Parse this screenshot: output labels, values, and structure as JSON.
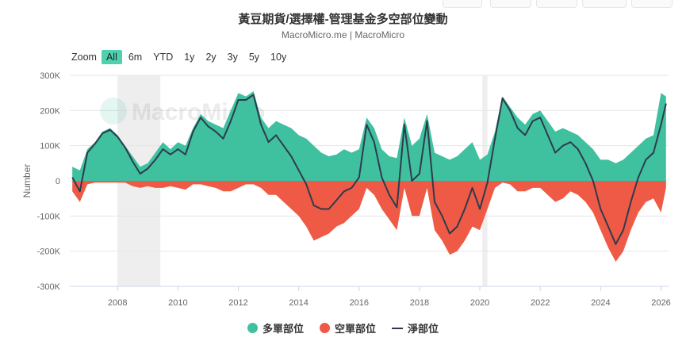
{
  "title": "黃豆期貨/選擇權-管理基金多空部位變動",
  "subtitle": "MacroMicro.me | MacroMicro",
  "watermark": "MacroMicro",
  "zoom": {
    "label": "Zoom",
    "buttons": [
      "All",
      "6m",
      "YTD",
      "1y",
      "2y",
      "3y",
      "5y",
      "10y"
    ],
    "active": "All"
  },
  "legend": [
    {
      "label": "多單部位",
      "color": "#3fc1a0"
    },
    {
      "label": "空單部位",
      "color": "#ee5a45"
    },
    {
      "label": "淨部位",
      "color": "#2f3b4c"
    }
  ],
  "chart_data": {
    "type": "area",
    "ylabel": "Number",
    "ylim": [
      -300000,
      300000
    ],
    "ytick_labels": [
      "300K",
      "200K",
      "100K",
      "0",
      "-100K",
      "-200K",
      "-300K"
    ],
    "ytick_values": [
      300000,
      200000,
      100000,
      0,
      -100000,
      -200000,
      -300000
    ],
    "xlim": [
      "2006-06",
      "2026-04"
    ],
    "xtick_labels": [
      "2008",
      "2010",
      "2012",
      "2014",
      "2016",
      "2018",
      "2020",
      "2022",
      "2024",
      "2026"
    ],
    "grid": true,
    "legend_position": "bottom",
    "shaded_periods": [
      [
        "2008-01",
        "2009-06"
      ],
      [
        "2020-02",
        "2020-04"
      ]
    ],
    "x": [
      "2006-07",
      "2006-10",
      "2007-01",
      "2007-04",
      "2007-07",
      "2007-10",
      "2008-01",
      "2008-04",
      "2008-07",
      "2008-10",
      "2009-01",
      "2009-04",
      "2009-07",
      "2009-10",
      "2010-01",
      "2010-04",
      "2010-07",
      "2010-10",
      "2011-01",
      "2011-04",
      "2011-07",
      "2011-10",
      "2012-01",
      "2012-04",
      "2012-07",
      "2012-10",
      "2013-01",
      "2013-04",
      "2013-07",
      "2013-10",
      "2014-01",
      "2014-04",
      "2014-07",
      "2014-10",
      "2015-01",
      "2015-04",
      "2015-07",
      "2015-10",
      "2016-01",
      "2016-04",
      "2016-07",
      "2016-10",
      "2017-01",
      "2017-04",
      "2017-07",
      "2017-10",
      "2018-01",
      "2018-04",
      "2018-07",
      "2018-10",
      "2019-01",
      "2019-04",
      "2019-07",
      "2019-10",
      "2020-01",
      "2020-04",
      "2020-07",
      "2020-10",
      "2021-01",
      "2021-04",
      "2021-07",
      "2021-10",
      "2022-01",
      "2022-04",
      "2022-07",
      "2022-10",
      "2023-01",
      "2023-04",
      "2023-07",
      "2023-10",
      "2024-01",
      "2024-04",
      "2024-07",
      "2024-10",
      "2025-01",
      "2025-04",
      "2025-07",
      "2025-10",
      "2026-01",
      "2026-03"
    ],
    "series": [
      {
        "name": "多單部位",
        "values": [
          40000,
          30000,
          90000,
          110000,
          140000,
          150000,
          130000,
          100000,
          70000,
          40000,
          50000,
          80000,
          110000,
          90000,
          110000,
          100000,
          150000,
          190000,
          170000,
          160000,
          150000,
          200000,
          250000,
          240000,
          255000,
          180000,
          150000,
          170000,
          160000,
          150000,
          130000,
          120000,
          100000,
          80000,
          70000,
          75000,
          90000,
          80000,
          90000,
          180000,
          150000,
          90000,
          70000,
          65000,
          180000,
          100000,
          120000,
          190000,
          80000,
          70000,
          60000,
          70000,
          90000,
          110000,
          60000,
          75000,
          140000,
          240000,
          210000,
          180000,
          160000,
          190000,
          200000,
          170000,
          140000,
          150000,
          140000,
          130000,
          110000,
          90000,
          60000,
          60000,
          50000,
          60000,
          80000,
          100000,
          120000,
          130000,
          250000,
          240000
        ]
      },
      {
        "name": "空單部位",
        "values": [
          -30000,
          -60000,
          -10000,
          -5000,
          -5000,
          -5000,
          -5000,
          -5000,
          -15000,
          -20000,
          -15000,
          -20000,
          -20000,
          -15000,
          -20000,
          -25000,
          -10000,
          -10000,
          -15000,
          -20000,
          -30000,
          -30000,
          -20000,
          -10000,
          -10000,
          -20000,
          -40000,
          -40000,
          -60000,
          -80000,
          -100000,
          -130000,
          -170000,
          -160000,
          -150000,
          -130000,
          -120000,
          -100000,
          -80000,
          -20000,
          -40000,
          -80000,
          -110000,
          -140000,
          -20000,
          -100000,
          -100000,
          -20000,
          -140000,
          -170000,
          -210000,
          -200000,
          -170000,
          -130000,
          -140000,
          -80000,
          -20000,
          -5000,
          -10000,
          -30000,
          -30000,
          -20000,
          -20000,
          -40000,
          -60000,
          -50000,
          -30000,
          -40000,
          -60000,
          -90000,
          -140000,
          -190000,
          -230000,
          -200000,
          -140000,
          -90000,
          -60000,
          -50000,
          -90000,
          -20000
        ]
      },
      {
        "name": "淨部位",
        "values": [
          10000,
          -30000,
          80000,
          105000,
          135000,
          145000,
          125000,
          95000,
          55000,
          20000,
          35000,
          60000,
          90000,
          75000,
          90000,
          75000,
          140000,
          180000,
          155000,
          140000,
          120000,
          170000,
          230000,
          230000,
          245000,
          160000,
          110000,
          130000,
          100000,
          70000,
          30000,
          -10000,
          -70000,
          -80000,
          -80000,
          -55000,
          -30000,
          -20000,
          10000,
          160000,
          110000,
          10000,
          -40000,
          -75000,
          160000,
          0,
          20000,
          170000,
          -60000,
          -100000,
          -150000,
          -130000,
          -80000,
          -20000,
          -80000,
          -5000,
          120000,
          235000,
          200000,
          150000,
          130000,
          170000,
          180000,
          130000,
          80000,
          100000,
          110000,
          90000,
          50000,
          0,
          -80000,
          -130000,
          -180000,
          -140000,
          -60000,
          10000,
          60000,
          80000,
          160000,
          220000
        ]
      }
    ]
  }
}
